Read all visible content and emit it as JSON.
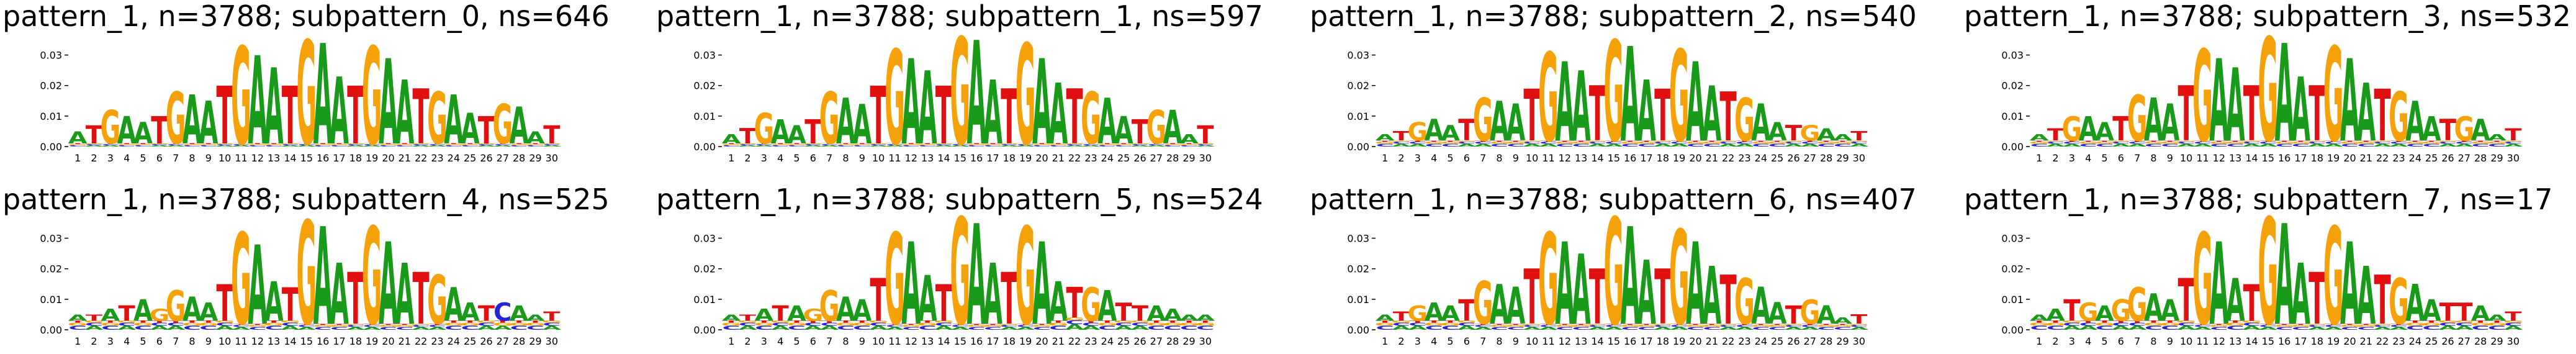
{
  "chart_data": [
    {
      "type": "logo",
      "title": "pattern_1, n=3788; subpattern_0, ns=646",
      "yticks": [
        "0.00",
        "0.01",
        "0.02",
        "0.03"
      ],
      "ylim": [
        0,
        0.035
      ],
      "positions": [
        "1",
        "2",
        "3",
        "4",
        "5",
        "6",
        "7",
        "8",
        "9",
        "10",
        "11",
        "12",
        "13",
        "14",
        "15",
        "16",
        "17",
        "18",
        "19",
        "20",
        "21",
        "22",
        "23",
        "24",
        "25",
        "26",
        "27",
        "28",
        "29",
        "30"
      ],
      "motif": "ATGAATGAATGAATGAATGAATGAATGAAT",
      "heights": [
        0.004,
        0.006,
        0.011,
        0.009,
        0.007,
        0.009,
        0.017,
        0.016,
        0.014,
        0.019,
        0.032,
        0.029,
        0.025,
        0.019,
        0.034,
        0.033,
        0.022,
        0.019,
        0.032,
        0.028,
        0.021,
        0.018,
        0.017,
        0.016,
        0.01,
        0.009,
        0.013,
        0.012,
        0.004,
        0.006
      ],
      "noise": [
        0.001,
        0.001,
        0.001,
        0.001,
        0.001,
        0.001,
        0.001,
        0.001,
        0.001,
        0.001,
        0.001,
        0.001,
        0.001,
        0.001,
        0.001,
        0.001,
        0.001,
        0.001,
        0.001,
        0.001,
        0.001,
        0.001,
        0.001,
        0.001,
        0.001,
        0.001,
        0.001,
        0.001,
        0.001,
        0.001
      ]
    },
    {
      "type": "logo",
      "title": "pattern_1, n=3788; subpattern_1, ns=597",
      "yticks": [
        "0.00",
        "0.01",
        "0.02",
        "0.03"
      ],
      "ylim": [
        0,
        0.035
      ],
      "positions": [
        "1",
        "2",
        "3",
        "4",
        "5",
        "6",
        "7",
        "8",
        "9",
        "10",
        "11",
        "12",
        "13",
        "14",
        "15",
        "16",
        "17",
        "18",
        "19",
        "20",
        "21",
        "22",
        "23",
        "24",
        "25",
        "26",
        "27",
        "28",
        "29",
        "30"
      ],
      "motif": "ATGAATGAATGAATGAATGAATGAATGAAT",
      "heights": [
        0.003,
        0.005,
        0.01,
        0.008,
        0.006,
        0.008,
        0.017,
        0.015,
        0.013,
        0.019,
        0.031,
        0.028,
        0.024,
        0.019,
        0.035,
        0.034,
        0.021,
        0.018,
        0.033,
        0.028,
        0.02,
        0.018,
        0.017,
        0.015,
        0.009,
        0.008,
        0.011,
        0.011,
        0.003,
        0.006
      ],
      "noise": [
        0.001,
        0.001,
        0.001,
        0.001,
        0.001,
        0.001,
        0.001,
        0.001,
        0.001,
        0.001,
        0.001,
        0.001,
        0.001,
        0.001,
        0.001,
        0.001,
        0.001,
        0.001,
        0.001,
        0.001,
        0.001,
        0.001,
        0.001,
        0.001,
        0.001,
        0.001,
        0.001,
        0.001,
        0.001,
        0.001
      ]
    },
    {
      "type": "logo",
      "title": "pattern_1, n=3788; subpattern_2, ns=540",
      "yticks": [
        "0.00",
        "0.01",
        "0.02",
        "0.03"
      ],
      "ylim": [
        0,
        0.035
      ],
      "positions": [
        "1",
        "2",
        "3",
        "4",
        "5",
        "6",
        "7",
        "8",
        "9",
        "10",
        "11",
        "12",
        "13",
        "14",
        "15",
        "16",
        "17",
        "18",
        "19",
        "20",
        "21",
        "22",
        "23",
        "24",
        "25",
        "26",
        "27",
        "28",
        "29",
        "30"
      ],
      "motif": "ATGAATGAATGAATGAATGAATGAATGAAT",
      "heights": [
        0.002,
        0.003,
        0.006,
        0.007,
        0.005,
        0.007,
        0.014,
        0.013,
        0.012,
        0.017,
        0.029,
        0.026,
        0.023,
        0.018,
        0.033,
        0.031,
        0.02,
        0.017,
        0.03,
        0.026,
        0.018,
        0.016,
        0.014,
        0.012,
        0.006,
        0.005,
        0.005,
        0.004,
        0.002,
        0.003
      ],
      "noise": [
        0.002,
        0.002,
        0.002,
        0.002,
        0.002,
        0.002,
        0.002,
        0.002,
        0.002,
        0.002,
        0.002,
        0.002,
        0.002,
        0.002,
        0.002,
        0.002,
        0.002,
        0.002,
        0.002,
        0.002,
        0.002,
        0.002,
        0.002,
        0.002,
        0.002,
        0.002,
        0.002,
        0.002,
        0.002,
        0.002
      ]
    },
    {
      "type": "logo",
      "title": "pattern_1, n=3788; subpattern_3, ns=532",
      "yticks": [
        "0.00",
        "0.01",
        "0.02",
        "0.03"
      ],
      "ylim": [
        0,
        0.035
      ],
      "positions": [
        "1",
        "2",
        "3",
        "4",
        "5",
        "6",
        "7",
        "8",
        "9",
        "10",
        "11",
        "12",
        "13",
        "14",
        "15",
        "16",
        "17",
        "18",
        "19",
        "20",
        "21",
        "22",
        "23",
        "24",
        "25",
        "26",
        "27",
        "28",
        "29",
        "30"
      ],
      "motif": "ATGAATGAATGAATGAATGAATGAATGAAT",
      "heights": [
        0.002,
        0.004,
        0.008,
        0.008,
        0.006,
        0.008,
        0.015,
        0.014,
        0.012,
        0.018,
        0.03,
        0.027,
        0.024,
        0.018,
        0.034,
        0.032,
        0.021,
        0.018,
        0.031,
        0.027,
        0.019,
        0.017,
        0.016,
        0.013,
        0.008,
        0.007,
        0.008,
        0.007,
        0.002,
        0.004
      ],
      "noise": [
        0.002,
        0.002,
        0.002,
        0.002,
        0.002,
        0.002,
        0.002,
        0.002,
        0.002,
        0.002,
        0.002,
        0.002,
        0.002,
        0.002,
        0.002,
        0.002,
        0.002,
        0.002,
        0.002,
        0.002,
        0.002,
        0.002,
        0.002,
        0.002,
        0.002,
        0.002,
        0.002,
        0.002,
        0.002,
        0.002
      ]
    },
    {
      "type": "logo",
      "title": "pattern_1, n=3788; subpattern_4, ns=525",
      "yticks": [
        "0.00",
        "0.01",
        "0.02",
        "0.03"
      ],
      "ylim": [
        0,
        0.035
      ],
      "positions": [
        "1",
        "2",
        "3",
        "4",
        "5",
        "6",
        "7",
        "8",
        "9",
        "10",
        "11",
        "12",
        "13",
        "14",
        "15",
        "16",
        "17",
        "18",
        "19",
        "20",
        "21",
        "22",
        "23",
        "24",
        "25",
        "26",
        "27",
        "28",
        "29",
        "30"
      ],
      "motif": "ATATAGGAATGAATGAATGAATGAATCAAT",
      "heights": [
        0.002,
        0.002,
        0.004,
        0.005,
        0.007,
        0.004,
        0.01,
        0.008,
        0.006,
        0.012,
        0.03,
        0.026,
        0.013,
        0.011,
        0.034,
        0.032,
        0.02,
        0.017,
        0.032,
        0.027,
        0.02,
        0.017,
        0.016,
        0.011,
        0.006,
        0.005,
        0.006,
        0.005,
        0.002,
        0.003
      ],
      "noise": [
        0.003,
        0.003,
        0.003,
        0.003,
        0.003,
        0.003,
        0.003,
        0.003,
        0.003,
        0.003,
        0.002,
        0.002,
        0.003,
        0.003,
        0.002,
        0.002,
        0.002,
        0.002,
        0.002,
        0.002,
        0.002,
        0.002,
        0.002,
        0.003,
        0.003,
        0.003,
        0.003,
        0.003,
        0.003,
        0.003
      ]
    },
    {
      "type": "logo",
      "title": "pattern_1, n=3788; subpattern_5, ns=524",
      "yticks": [
        "0.00",
        "0.01",
        "0.02",
        "0.03"
      ],
      "ylim": [
        0,
        0.035
      ],
      "positions": [
        "1",
        "2",
        "3",
        "4",
        "5",
        "6",
        "7",
        "8",
        "9",
        "10",
        "11",
        "12",
        "13",
        "14",
        "15",
        "16",
        "17",
        "18",
        "19",
        "20",
        "21",
        "22",
        "23",
        "24",
        "25",
        "26",
        "27",
        "28",
        "29",
        "30"
      ],
      "motif": "ATATAGGAATGAATGAATGAATGATTAAAA",
      "heights": [
        0.002,
        0.002,
        0.004,
        0.005,
        0.005,
        0.004,
        0.01,
        0.008,
        0.007,
        0.014,
        0.03,
        0.027,
        0.015,
        0.012,
        0.035,
        0.033,
        0.02,
        0.017,
        0.032,
        0.027,
        0.013,
        0.01,
        0.011,
        0.01,
        0.006,
        0.005,
        0.005,
        0.004,
        0.002,
        0.002
      ],
      "noise": [
        0.003,
        0.003,
        0.003,
        0.003,
        0.003,
        0.003,
        0.003,
        0.003,
        0.003,
        0.003,
        0.002,
        0.002,
        0.003,
        0.003,
        0.002,
        0.002,
        0.002,
        0.002,
        0.002,
        0.002,
        0.003,
        0.004,
        0.003,
        0.003,
        0.003,
        0.003,
        0.003,
        0.003,
        0.003,
        0.003
      ]
    },
    {
      "type": "logo",
      "title": "pattern_1, n=3788; subpattern_6, ns=407",
      "yticks": [
        "0.00",
        "0.01",
        "0.02",
        "0.03"
      ],
      "ylim": [
        0,
        0.035
      ],
      "positions": [
        "1",
        "2",
        "3",
        "4",
        "5",
        "6",
        "7",
        "8",
        "9",
        "10",
        "11",
        "12",
        "13",
        "14",
        "15",
        "16",
        "17",
        "18",
        "19",
        "20",
        "21",
        "22",
        "23",
        "24",
        "25",
        "26",
        "27",
        "28",
        "29",
        "30"
      ],
      "motif": "ATGAATGAATGAATGAATGAATGAATGAAT",
      "heights": [
        0.002,
        0.003,
        0.005,
        0.006,
        0.005,
        0.007,
        0.014,
        0.013,
        0.012,
        0.018,
        0.03,
        0.027,
        0.023,
        0.018,
        0.035,
        0.032,
        0.021,
        0.018,
        0.031,
        0.027,
        0.019,
        0.016,
        0.015,
        0.012,
        0.007,
        0.006,
        0.008,
        0.006,
        0.002,
        0.003
      ],
      "noise": [
        0.003,
        0.003,
        0.003,
        0.003,
        0.003,
        0.003,
        0.002,
        0.002,
        0.002,
        0.002,
        0.002,
        0.002,
        0.002,
        0.002,
        0.002,
        0.002,
        0.002,
        0.002,
        0.002,
        0.002,
        0.002,
        0.002,
        0.002,
        0.002,
        0.002,
        0.002,
        0.002,
        0.002,
        0.002,
        0.002
      ]
    },
    {
      "type": "logo",
      "title": "pattern_1, n=3788; subpattern_7, ns=17",
      "yticks": [
        "0.00",
        "0.01",
        "0.02",
        "0.03"
      ],
      "ylim": [
        0,
        0.035
      ],
      "positions": [
        "1",
        "2",
        "3",
        "4",
        "5",
        "6",
        "7",
        "8",
        "9",
        "10",
        "11",
        "12",
        "13",
        "14",
        "15",
        "16",
        "17",
        "18",
        "19",
        "20",
        "21",
        "22",
        "23",
        "24",
        "25",
        "26",
        "27",
        "28",
        "29",
        "30"
      ],
      "motif": "AATGAGGAATGAATGAATGAATGAATTAAT",
      "heights": [
        0.002,
        0.004,
        0.007,
        0.006,
        0.005,
        0.007,
        0.011,
        0.009,
        0.007,
        0.014,
        0.03,
        0.027,
        0.014,
        0.012,
        0.035,
        0.033,
        0.02,
        0.017,
        0.032,
        0.027,
        0.019,
        0.016,
        0.015,
        0.012,
        0.007,
        0.006,
        0.006,
        0.005,
        0.002,
        0.003
      ],
      "noise": [
        0.003,
        0.003,
        0.003,
        0.003,
        0.003,
        0.003,
        0.003,
        0.003,
        0.003,
        0.003,
        0.002,
        0.002,
        0.003,
        0.003,
        0.002,
        0.002,
        0.002,
        0.002,
        0.002,
        0.002,
        0.002,
        0.002,
        0.002,
        0.003,
        0.003,
        0.003,
        0.003,
        0.003,
        0.003,
        0.003
      ]
    }
  ],
  "base_colors": {
    "A": "#1a9a1a",
    "C": "#2323d8",
    "G": "#f5a10a",
    "T": "#e01010"
  }
}
